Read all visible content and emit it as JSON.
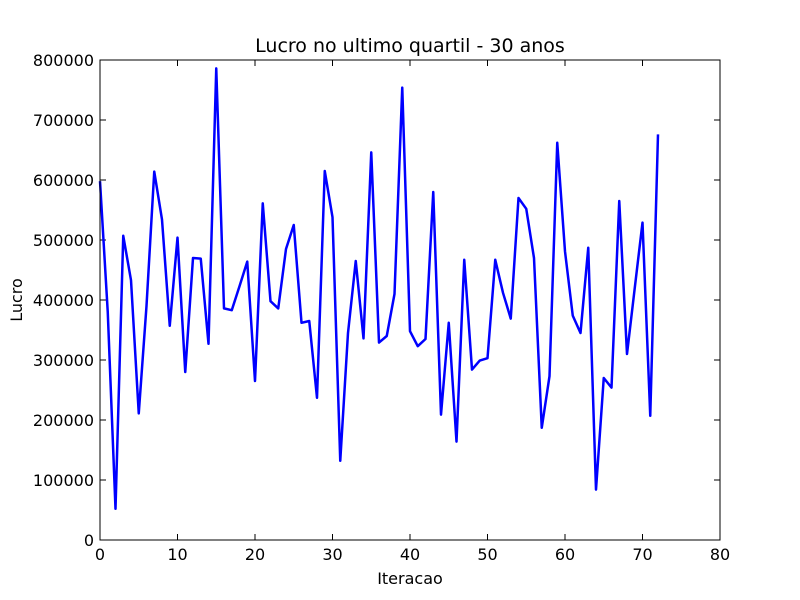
{
  "chart_data": {
    "type": "line",
    "title": "Lucro no ultimo quartil - 30 anos",
    "xlabel": "Iteracao",
    "ylabel": "Lucro",
    "xlim": [
      0,
      80
    ],
    "ylim": [
      0,
      800000
    ],
    "xticks": [
      0,
      10,
      20,
      30,
      40,
      50,
      60,
      70,
      80
    ],
    "yticks": [
      0,
      100000,
      200000,
      300000,
      400000,
      500000,
      600000,
      700000,
      800000
    ],
    "xtick_labels": [
      "0",
      "10",
      "20",
      "30",
      "40",
      "50",
      "60",
      "70",
      "80"
    ],
    "ytick_labels": [
      "0",
      "100000",
      "200000",
      "300000",
      "400000",
      "500000",
      "600000",
      "700000",
      "800000"
    ],
    "grid": false,
    "series_color": "#0000ff",
    "series": [
      {
        "x": [
          0,
          1,
          2,
          3,
          4,
          5,
          6,
          7,
          8,
          9,
          10,
          11,
          12,
          13,
          14,
          15,
          16,
          17,
          18,
          19,
          20,
          21,
          22,
          23,
          24,
          25,
          26,
          27,
          28,
          29,
          30,
          31,
          32,
          33,
          34,
          35,
          36,
          37,
          38,
          39,
          40,
          41,
          42,
          43,
          44,
          45,
          46,
          47,
          48,
          49,
          50,
          51,
          52,
          53,
          54,
          55,
          56,
          57,
          58,
          59,
          60,
          61,
          62,
          63,
          64,
          65,
          66,
          67,
          68,
          69,
          70,
          71,
          72
        ],
        "values": [
          598000,
          380000,
          52000,
          507000,
          433000,
          211000,
          390000,
          614000,
          534000,
          357000,
          504000,
          280000,
          470000,
          469000,
          327000,
          786000,
          386000,
          383000,
          423000,
          464000,
          265000,
          561000,
          398000,
          386000,
          485000,
          525000,
          362000,
          365000,
          237000,
          615000,
          538000,
          132000,
          345000,
          465000,
          336000,
          646000,
          329000,
          340000,
          410000,
          754000,
          348000,
          323000,
          335000,
          580000,
          209000,
          362000,
          164000,
          467000,
          284000,
          299000,
          303000,
          467000,
          412000,
          369000,
          570000,
          552000,
          470000,
          187000,
          273000,
          662000,
          481000,
          374000,
          345000,
          487000,
          84000,
          270000,
          254000,
          565000,
          310000,
          420000,
          529000,
          207000,
          676000
        ]
      }
    ]
  }
}
